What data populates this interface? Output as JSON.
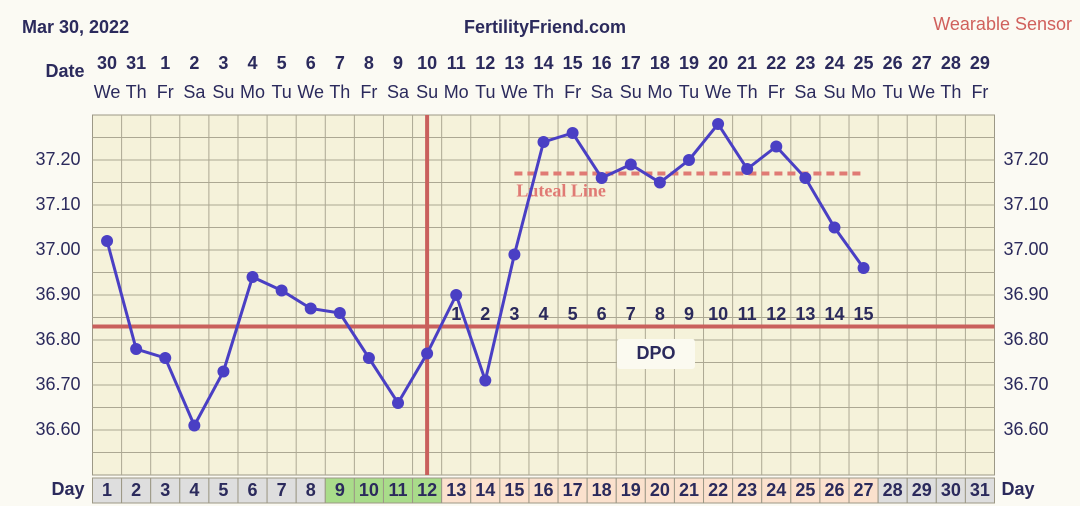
{
  "chart_data": {
    "type": "line",
    "title": "FertilityFriend.com",
    "date": "Mar 30, 2022",
    "source": "Wearable Sensor",
    "date_label": "Date",
    "day_label": "Day",
    "dates": [
      "30",
      "31",
      "1",
      "2",
      "3",
      "4",
      "5",
      "6",
      "7",
      "8",
      "9",
      "10",
      "11",
      "12",
      "13",
      "14",
      "15",
      "16",
      "17",
      "18",
      "19",
      "20",
      "21",
      "22",
      "23",
      "24",
      "25",
      "26",
      "27",
      "28",
      "29"
    ],
    "weekdays": [
      "We",
      "Th",
      "Fr",
      "Sa",
      "Su",
      "Mo",
      "Tu",
      "We",
      "Th",
      "Fr",
      "Sa",
      "Su",
      "Mo",
      "Tu",
      "We",
      "Th",
      "Fr",
      "Sa",
      "Su",
      "Mo",
      "Tu",
      "We",
      "Th",
      "Fr",
      "Sa",
      "Su",
      "Mo",
      "Tu",
      "We",
      "Th",
      "Fr"
    ],
    "categories": [
      1,
      2,
      3,
      4,
      5,
      6,
      7,
      8,
      9,
      10,
      11,
      12,
      13,
      14,
      15,
      16,
      17,
      18,
      19,
      20,
      21,
      22,
      23,
      24,
      25,
      26,
      27,
      28,
      29,
      30,
      31
    ],
    "values": [
      37.02,
      36.78,
      36.76,
      36.61,
      36.73,
      36.94,
      36.91,
      36.87,
      36.86,
      36.76,
      36.66,
      36.77,
      36.9,
      36.71,
      36.99,
      37.24,
      37.26,
      37.16,
      37.19,
      37.15,
      37.2,
      37.28,
      37.18,
      37.23,
      37.16,
      37.05,
      36.96,
      null,
      null,
      null,
      null
    ],
    "color": "#4a3fc4",
    "dpo_label": "DPO",
    "dpo": [
      null,
      null,
      null,
      null,
      null,
      null,
      null,
      null,
      null,
      null,
      null,
      null,
      1,
      2,
      3,
      4,
      5,
      6,
      7,
      8,
      9,
      10,
      11,
      12,
      13,
      14,
      15,
      null,
      null,
      null,
      null
    ],
    "day_colors": [
      "#dedede",
      "#dedede",
      "#dedede",
      "#dedede",
      "#dedede",
      "#dedede",
      "#dedede",
      "#dedede",
      "#a9dc8a",
      "#a9dc8a",
      "#a9dc8a",
      "#a9dc8a",
      "#fbe1cd",
      "#fbe1cd",
      "#fbe1cd",
      "#fbe1cd",
      "#fbe1cd",
      "#fbe1cd",
      "#fbe1cd",
      "#fbe1cd",
      "#fbe1cd",
      "#fbe1cd",
      "#fbe1cd",
      "#fbe1cd",
      "#fbe1cd",
      "#fbe1cd",
      "#fbe1cd",
      "#dedede",
      "#dedede",
      "#dedede",
      "#dedede"
    ],
    "coverline": {
      "value": 36.83,
      "color": "#c9605c"
    },
    "ovulation_day": 12,
    "luteal_line": {
      "label": "Luteal Line",
      "value": 37.17,
      "from": 15,
      "to": 27,
      "color": "#e07a74"
    },
    "ylim": [
      36.5,
      37.3
    ],
    "yticks": [
      {
        "value": 36.6,
        "label": "36.60"
      },
      {
        "value": 36.7,
        "label": "36.70"
      },
      {
        "value": 36.8,
        "label": "36.80"
      },
      {
        "value": 36.9,
        "label": "36.90"
      },
      {
        "value": 37.0,
        "label": "37.00"
      },
      {
        "value": 37.1,
        "label": "37.10"
      },
      {
        "value": 37.2,
        "label": "37.20"
      }
    ],
    "y_grid": [
      36.55,
      36.6,
      36.65,
      36.7,
      36.75,
      36.8,
      36.85,
      36.9,
      36.95,
      37.0,
      37.05,
      37.1,
      37.15,
      37.2,
      37.25
    ],
    "grid": true
  }
}
